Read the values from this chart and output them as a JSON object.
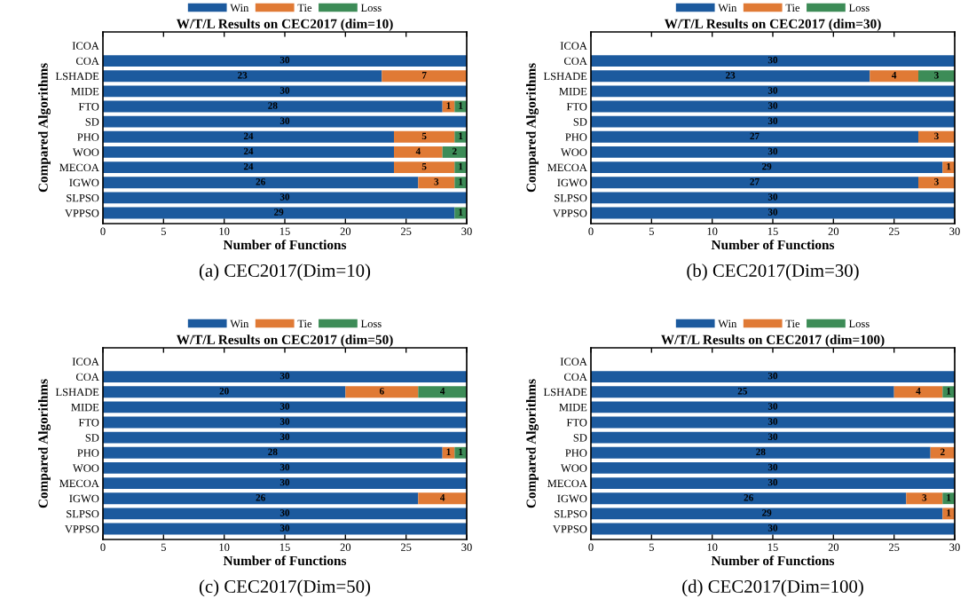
{
  "chart_data": [
    {
      "type": "bar",
      "orientation": "horizontal",
      "stacked": true,
      "title": "W/T/L Results on CEC2017 (dim=10)",
      "xlabel": "Number of Functions",
      "ylabel": "Compared Algorithms",
      "categories": [
        "ICOA",
        "COA",
        "LSHADE",
        "MIDE",
        "FTO",
        "SD",
        "PHO",
        "WOO",
        "MECOA",
        "IGWO",
        "SLPSO",
        "VPPSO"
      ],
      "series": [
        {
          "name": "Win",
          "color": "#1c5a9e",
          "values": [
            null,
            30,
            23,
            30,
            28,
            30,
            24,
            24,
            24,
            26,
            30,
            29
          ]
        },
        {
          "name": "Tie",
          "color": "#e07a35",
          "values": [
            null,
            null,
            7,
            null,
            1,
            null,
            5,
            4,
            5,
            3,
            null,
            null
          ]
        },
        {
          "name": "Loss",
          "color": "#3d8c57",
          "values": [
            null,
            null,
            null,
            null,
            1,
            null,
            1,
            2,
            1,
            1,
            null,
            1
          ]
        }
      ],
      "xlim": [
        0,
        30
      ],
      "xticks": [
        0,
        5,
        10,
        15,
        20,
        25,
        30
      ],
      "data_labels": true,
      "legend": "top",
      "annotations": [
        "(a) CEC2017(Dim=10)"
      ]
    },
    {
      "type": "bar",
      "orientation": "horizontal",
      "stacked": true,
      "title": "W/T/L Results on CEC2017 (dim=30)",
      "xlabel": "Number of Functions",
      "ylabel": "Compared Algorithms",
      "categories": [
        "ICOA",
        "COA",
        "LSHADE",
        "MIDE",
        "FTO",
        "SD",
        "PHO",
        "WOO",
        "MECOA",
        "IGWO",
        "SLPSO",
        "VPPSO"
      ],
      "series": [
        {
          "name": "Win",
          "color": "#1c5a9e",
          "values": [
            null,
            30,
            23,
            30,
            30,
            30,
            27,
            30,
            29,
            27,
            30,
            30
          ]
        },
        {
          "name": "Tie",
          "color": "#e07a35",
          "values": [
            null,
            null,
            4,
            null,
            null,
            null,
            3,
            null,
            1,
            3,
            null,
            null
          ]
        },
        {
          "name": "Loss",
          "color": "#3d8c57",
          "values": [
            null,
            null,
            3,
            null,
            null,
            null,
            null,
            null,
            null,
            null,
            null,
            null
          ]
        }
      ],
      "xlim": [
        0,
        30
      ],
      "xticks": [
        0,
        5,
        10,
        15,
        20,
        25,
        30
      ],
      "data_labels": true,
      "legend": "top",
      "annotations": [
        "(b) CEC2017(Dim=30)"
      ]
    },
    {
      "type": "bar",
      "orientation": "horizontal",
      "stacked": true,
      "title": "W/T/L Results on CEC2017 (dim=50)",
      "xlabel": "Number of Functions",
      "ylabel": "Compared Algorithms",
      "categories": [
        "ICOA",
        "COA",
        "LSHADE",
        "MIDE",
        "FTO",
        "SD",
        "PHO",
        "WOO",
        "MECOA",
        "IGWO",
        "SLPSO",
        "VPPSO"
      ],
      "series": [
        {
          "name": "Win",
          "color": "#1c5a9e",
          "values": [
            null,
            30,
            20,
            30,
            30,
            30,
            28,
            30,
            30,
            26,
            30,
            30
          ]
        },
        {
          "name": "Tie",
          "color": "#e07a35",
          "values": [
            null,
            null,
            6,
            null,
            null,
            null,
            1,
            null,
            null,
            4,
            null,
            null
          ]
        },
        {
          "name": "Loss",
          "color": "#3d8c57",
          "values": [
            null,
            null,
            4,
            null,
            null,
            null,
            1,
            null,
            null,
            null,
            null,
            null
          ]
        }
      ],
      "xlim": [
        0,
        30
      ],
      "xticks": [
        0,
        5,
        10,
        15,
        20,
        25,
        30
      ],
      "data_labels": true,
      "legend": "top",
      "annotations": [
        "(c) CEC2017(Dim=50)"
      ]
    },
    {
      "type": "bar",
      "orientation": "horizontal",
      "stacked": true,
      "title": "W/T/L Results on CEC2017 (dim=100)",
      "xlabel": "Number of Functions",
      "ylabel": "Compared Algorithms",
      "categories": [
        "ICOA",
        "COA",
        "LSHADE",
        "MIDE",
        "FTO",
        "SD",
        "PHO",
        "WOO",
        "MECOA",
        "IGWO",
        "SLPSO",
        "VPPSO"
      ],
      "series": [
        {
          "name": "Win",
          "color": "#1c5a9e",
          "values": [
            null,
            30,
            25,
            30,
            30,
            30,
            28,
            30,
            30,
            26,
            29,
            30
          ]
        },
        {
          "name": "Tie",
          "color": "#e07a35",
          "values": [
            null,
            null,
            4,
            null,
            null,
            null,
            2,
            null,
            null,
            3,
            1,
            null
          ]
        },
        {
          "name": "Loss",
          "color": "#3d8c57",
          "values": [
            null,
            null,
            1,
            null,
            null,
            null,
            null,
            null,
            null,
            1,
            null,
            null
          ]
        }
      ],
      "xlim": [
        0,
        30
      ],
      "xticks": [
        0,
        5,
        10,
        15,
        20,
        25,
        30
      ],
      "data_labels": true,
      "legend": "top",
      "annotations": [
        "(d) CEC2017(Dim=100)"
      ]
    }
  ]
}
